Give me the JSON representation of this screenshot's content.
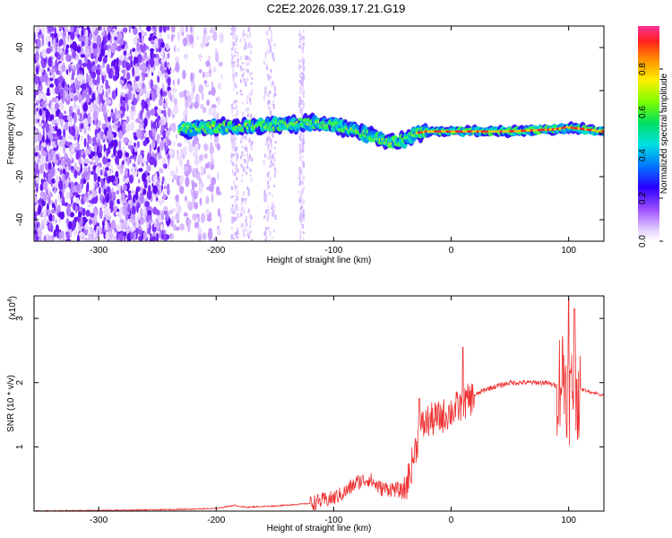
{
  "title": "C2E2.2026.039.17.21.G19",
  "chart_data": [
    {
      "type": "heatmap",
      "name": "spectrogram",
      "xlabel": "Height of straight line (km)",
      "ylabel": "Frequency (Hz)",
      "xlim": [
        -355,
        130
      ],
      "ylim": [
        -50,
        50
      ],
      "xticks": [
        -300,
        -200,
        -100,
        0,
        100
      ],
      "yticks": [
        -40,
        -20,
        0,
        20,
        40
      ],
      "colorbar": {
        "label": "Normalized spectral amplitude",
        "range": [
          0,
          1
        ],
        "ticks": [
          0.0,
          0.2,
          0.4,
          0.6,
          0.8
        ]
      },
      "signal_track": {
        "description_points_height_km": [
          -230,
          -200,
          -150,
          -120,
          -100,
          -80,
          -65,
          -50,
          -40,
          -30,
          -20,
          0,
          50,
          90,
          100,
          130
        ],
        "frequency_hz": [
          2,
          3,
          4,
          5,
          4,
          1,
          -2,
          -4,
          -3,
          0,
          1,
          1,
          1,
          2,
          3,
          1
        ]
      }
    },
    {
      "type": "line",
      "name": "snr",
      "xlabel": "Height of straight line (km)",
      "ylabel": "SNR (10 * v/v)",
      "scale_label": "(x10",
      "scale_exponent": "4",
      "xlim": [
        -355,
        130
      ],
      "ylim": [
        0,
        3.35
      ],
      "xticks": [
        -300,
        -200,
        -100,
        0,
        100
      ],
      "yticks": [
        1,
        2,
        3
      ],
      "color": "#ee3333",
      "series": [
        {
          "name": "SNR",
          "x": [
            -355,
            -300,
            -250,
            -200,
            -185,
            -175,
            -150,
            -120,
            -100,
            -90,
            -80,
            -70,
            -60,
            -50,
            -40,
            -35,
            -30,
            -25,
            -20,
            -10,
            0,
            10,
            20,
            30,
            40,
            50,
            60,
            70,
            80,
            90,
            95,
            100,
            105,
            110,
            120,
            130
          ],
          "y": [
            0.0,
            0.01,
            0.02,
            0.04,
            0.09,
            0.06,
            0.08,
            0.12,
            0.2,
            0.3,
            0.45,
            0.5,
            0.35,
            0.35,
            0.3,
            0.6,
            1.0,
            1.3,
            1.4,
            1.45,
            1.55,
            1.65,
            1.8,
            1.9,
            1.95,
            2.0,
            2.0,
            2.0,
            2.0,
            1.95,
            2.2,
            1.8,
            1.9,
            1.9,
            1.85,
            1.8
          ],
          "peaks": [
            {
              "x": 10,
              "y": 2.55
            },
            {
              "x": -27,
              "y": 1.75
            },
            {
              "x": 100,
              "y": 3.3
            },
            {
              "x": 105,
              "y": 3.15
            }
          ]
        }
      ]
    }
  ]
}
